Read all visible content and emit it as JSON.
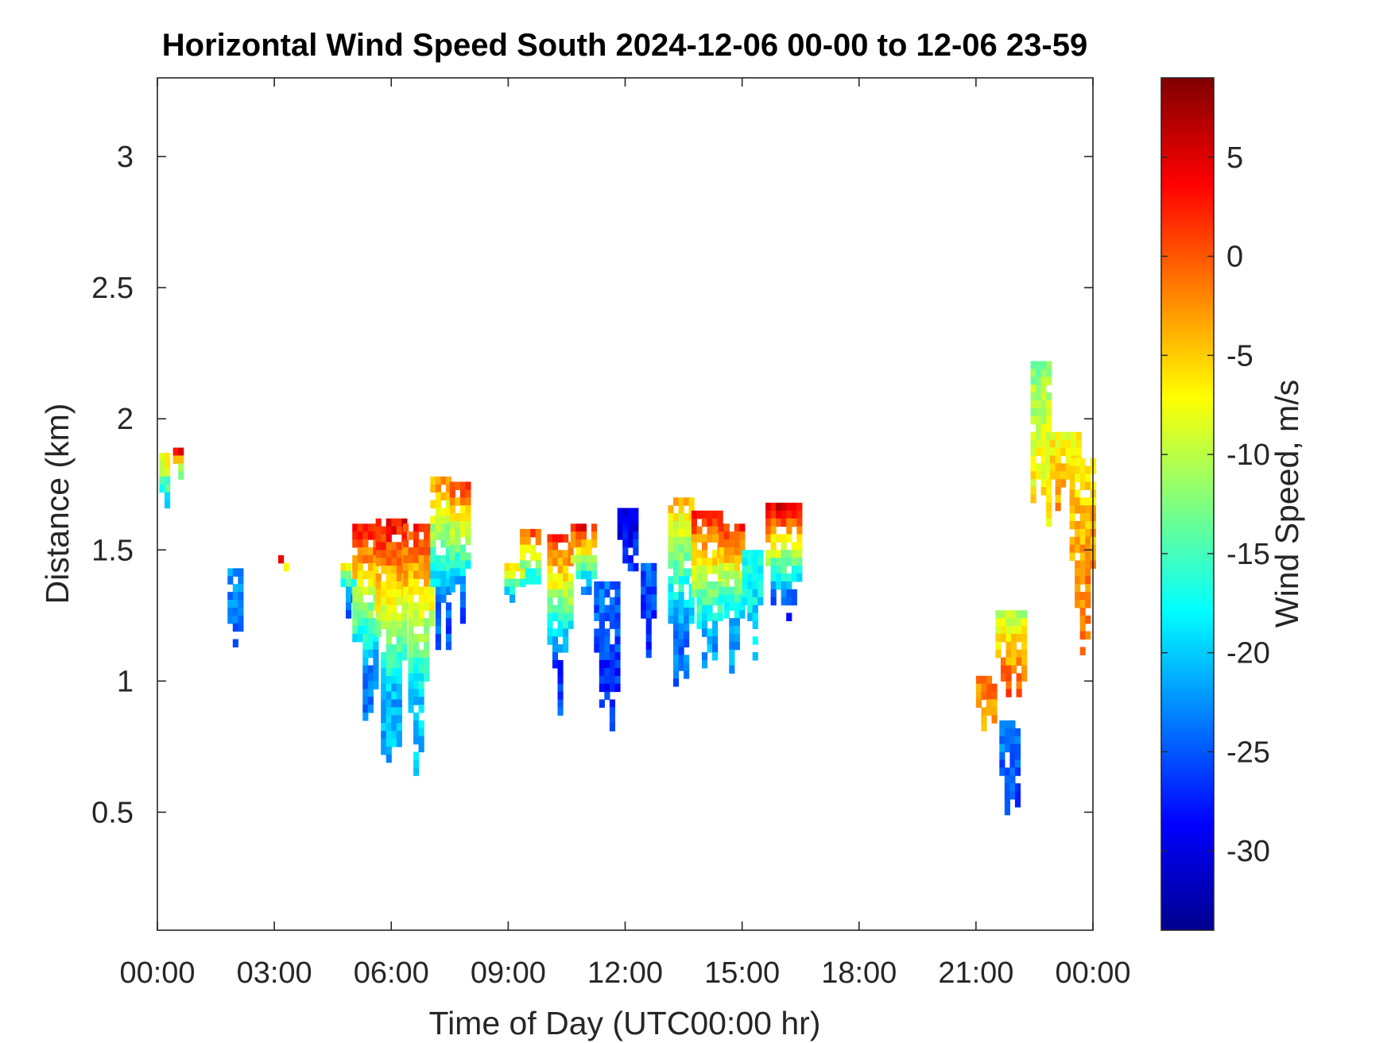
{
  "chart_data": {
    "type": "heatmap",
    "title": "Horizontal Wind Speed South 2024-12-06 00-00 to 12-06 23-59",
    "xlabel": "Time of Day (UTC00:00 hr)",
    "ylabel": "Distance (km)",
    "colorbar_label": "Wind Speed, m/s",
    "x_unit": "hours",
    "xlim": [
      0,
      24
    ],
    "ylim": [
      0.05,
      3.3
    ],
    "clim": [
      -34,
      9
    ],
    "x_ticks": [
      0,
      3,
      6,
      9,
      12,
      15,
      18,
      21,
      24
    ],
    "x_tick_labels": [
      "00:00",
      "03:00",
      "06:00",
      "09:00",
      "12:00",
      "15:00",
      "18:00",
      "21:00",
      "00:00"
    ],
    "y_ticks": [
      0.5,
      1,
      1.5,
      2,
      2.5,
      3
    ],
    "y_tick_labels": [
      "0.5",
      "1",
      "1.5",
      "2",
      "2.5",
      "3"
    ],
    "colorbar_ticks": [
      5,
      0,
      -5,
      -10,
      -15,
      -20,
      -25,
      -30
    ],
    "colorbar_tick_labels": [
      "5",
      "0",
      "-5",
      "-10",
      "-15",
      "-20",
      "-25",
      "-30"
    ],
    "colormap": "jet",
    "grid": false,
    "cell_size": {
      "dt_hours": 0.1333,
      "dz_km": 0.03
    },
    "clusters": [
      {
        "t_start": 0.05,
        "t_end": 0.2,
        "z_bottom": 1.6,
        "z_top": 1.87,
        "v_top": -6,
        "v_bottom": -20
      },
      {
        "t_start": 0.4,
        "t_end": 0.55,
        "z_bottom": 1.72,
        "z_top": 1.89,
        "v_top": 3,
        "v_bottom": -17
      },
      {
        "t_start": 1.8,
        "t_end": 2.15,
        "z_bottom": 1.1,
        "z_top": 1.43,
        "v_top": -22,
        "v_bottom": -24
      },
      {
        "t_start": 3.1,
        "t_end": 3.35,
        "z_bottom": 1.42,
        "z_top": 1.48,
        "v_top": 2,
        "v_bottom": -10
      },
      {
        "t_start": 4.7,
        "t_end": 5.0,
        "z_bottom": 1.25,
        "z_top": 1.45,
        "v_top": -8,
        "v_bottom": -24
      },
      {
        "t_start": 5.0,
        "t_end": 5.6,
        "z_bottom": 0.75,
        "z_top": 1.6,
        "v_top": 3,
        "v_bottom": -23
      },
      {
        "t_start": 5.6,
        "t_end": 6.3,
        "z_bottom": 0.56,
        "z_top": 1.62,
        "v_top": 4,
        "v_bottom": -21
      },
      {
        "t_start": 6.3,
        "t_end": 7.0,
        "z_bottom": 0.55,
        "z_top": 1.6,
        "v_top": 2,
        "v_bottom": -20
      },
      {
        "t_start": 7.0,
        "t_end": 7.5,
        "z_bottom": 0.95,
        "z_top": 1.78,
        "v_top": -3,
        "v_bottom": -25
      },
      {
        "t_start": 7.5,
        "t_end": 8.0,
        "z_bottom": 1.05,
        "z_top": 1.76,
        "v_top": 1,
        "v_bottom": -26
      },
      {
        "t_start": 8.9,
        "t_end": 9.3,
        "z_bottom": 1.27,
        "z_top": 1.45,
        "v_top": -6,
        "v_bottom": -22
      },
      {
        "t_start": 9.3,
        "t_end": 9.8,
        "z_bottom": 1.3,
        "z_top": 1.58,
        "v_top": 0,
        "v_bottom": -18
      },
      {
        "t_start": 10.0,
        "t_end": 10.6,
        "z_bottom": 0.8,
        "z_top": 1.56,
        "v_top": 2,
        "v_bottom": -26
      },
      {
        "t_start": 10.6,
        "t_end": 11.2,
        "z_bottom": 1.25,
        "z_top": 1.6,
        "v_top": 3,
        "v_bottom": -22
      },
      {
        "t_start": 11.2,
        "t_end": 11.8,
        "z_bottom": 0.8,
        "z_top": 1.38,
        "v_top": -24,
        "v_bottom": -27
      },
      {
        "t_start": 11.8,
        "t_end": 12.3,
        "z_bottom": 1.4,
        "z_top": 1.66,
        "v_top": -30,
        "v_bottom": -27
      },
      {
        "t_start": 12.4,
        "t_end": 12.7,
        "z_bottom": 1.1,
        "z_top": 1.45,
        "v_top": -25,
        "v_bottom": -27
      },
      {
        "t_start": 13.1,
        "t_end": 13.7,
        "z_bottom": 0.86,
        "z_top": 1.7,
        "v_top": -5,
        "v_bottom": -24
      },
      {
        "t_start": 13.7,
        "t_end": 14.4,
        "z_bottom": 0.9,
        "z_top": 1.65,
        "v_top": 3,
        "v_bottom": -22
      },
      {
        "t_start": 14.4,
        "t_end": 15.0,
        "z_bottom": 1.0,
        "z_top": 1.6,
        "v_top": 2,
        "v_bottom": -22
      },
      {
        "t_start": 15.0,
        "t_end": 15.4,
        "z_bottom": 1.05,
        "z_top": 1.5,
        "v_top": -16,
        "v_bottom": -20
      },
      {
        "t_start": 15.6,
        "t_end": 16.4,
        "z_bottom": 1.1,
        "z_top": 1.68,
        "v_top": 5,
        "v_bottom": -26
      },
      {
        "t_start": 21.0,
        "t_end": 21.5,
        "z_bottom": 0.78,
        "z_top": 1.02,
        "v_top": -1,
        "v_bottom": -4
      },
      {
        "t_start": 21.5,
        "t_end": 22.2,
        "z_bottom": 0.85,
        "z_top": 1.27,
        "v_top": -10,
        "v_bottom": 0
      },
      {
        "t_start": 21.6,
        "t_end": 22.1,
        "z_bottom": 0.42,
        "z_top": 0.85,
        "v_top": -22,
        "v_bottom": -26
      },
      {
        "t_start": 22.4,
        "t_end": 22.9,
        "z_bottom": 1.33,
        "z_top": 2.22,
        "v_top": -12,
        "v_bottom": -6
      },
      {
        "t_start": 22.9,
        "t_end": 23.6,
        "z_bottom": 1.6,
        "z_top": 1.95,
        "v_top": -8,
        "v_bottom": -3
      },
      {
        "t_start": 23.4,
        "t_end": 24.0,
        "z_bottom": 1.1,
        "z_top": 1.85,
        "v_top": -6,
        "v_bottom": -2
      }
    ]
  }
}
